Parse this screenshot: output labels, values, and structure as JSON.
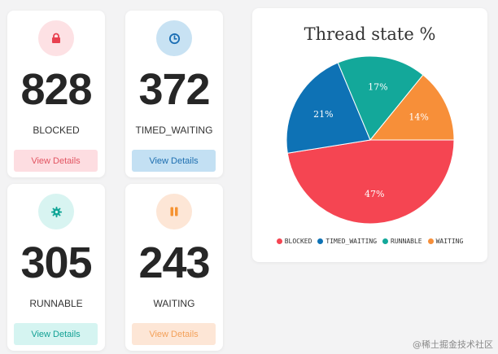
{
  "cards": [
    {
      "count": "828",
      "label": "BLOCKED",
      "button": "View Details",
      "icon": "lock-icon",
      "icon_bg": "#fde1e4",
      "icon_color": "#e8404f",
      "btn_bg": "#fddde1",
      "btn_color": "#e25562"
    },
    {
      "count": "372",
      "label": "TIMED_WAITING",
      "button": "View Details",
      "icon": "clock-icon",
      "icon_bg": "#c8e2f3",
      "icon_color": "#1b6eb4",
      "btn_bg": "#c3e0f3",
      "btn_color": "#1e6fb0"
    },
    {
      "count": "305",
      "label": "RUNNABLE",
      "button": "View Details",
      "icon": "gear-icon",
      "icon_bg": "#d8f4f1",
      "icon_color": "#12a697",
      "btn_bg": "#d5f4f1",
      "btn_color": "#14a195"
    },
    {
      "count": "243",
      "label": "WAITING",
      "button": "View Details",
      "icon": "pause-icon",
      "icon_bg": "#fde6d6",
      "icon_color": "#f59332",
      "btn_bg": "#fde6d6",
      "btn_color": "#f3a15a"
    }
  ],
  "chart_data": {
    "type": "pie",
    "title": "Thread state %",
    "series": [
      {
        "name": "BLOCKED",
        "value": 47,
        "color": "#f54552"
      },
      {
        "name": "TIMED_WAITING",
        "value": 21,
        "color": "#0e72b5"
      },
      {
        "name": "RUNNABLE",
        "value": 17,
        "color": "#13a89a"
      },
      {
        "name": "WAITING",
        "value": 14,
        "color": "#f78f39"
      }
    ],
    "value_suffix": "%",
    "legend_position": "bottom"
  },
  "watermark": "@稀土掘金技术社区"
}
